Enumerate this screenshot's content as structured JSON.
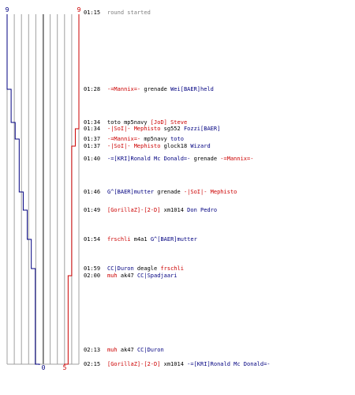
{
  "chart_data": {
    "type": "line",
    "title": "",
    "xlabel": "",
    "ylabel": "",
    "colors": {
      "blue": "#000080",
      "red": "#cc0000",
      "grid": "#a0a0a0",
      "center_line": "#404040"
    },
    "tick_labels": {
      "blue_start": "9",
      "red_start": "9",
      "blue_end": "0",
      "red_end": "5"
    },
    "series": [
      {
        "color": "#000080",
        "alive": [
          9,
          8,
          7,
          7,
          6,
          6,
          6,
          5,
          4,
          3,
          2,
          2,
          2,
          1,
          0
        ]
      },
      {
        "color": "#cc0000",
        "alive": [
          9,
          9,
          9,
          8,
          8,
          7,
          7,
          7,
          7,
          7,
          7,
          6,
          6,
          5,
          5
        ]
      }
    ],
    "events": [
      {
        "time": "01:15",
        "parts": [
          {
            "t": "round started",
            "c": "gry"
          }
        ]
      },
      {
        "time": "01:28",
        "parts": [
          {
            "t": "-=Mannix=-",
            "c": "red"
          },
          {
            "t": " grenade ",
            "c": "blk"
          },
          {
            "t": "Wei[BAER]held",
            "c": "blue"
          }
        ]
      },
      {
        "time": "01:34",
        "parts": [
          {
            "t": "toto",
            "c": "blk"
          },
          {
            "t": " mp5navy ",
            "c": "blk"
          },
          {
            "t": "[JoD] Steve",
            "c": "red"
          }
        ]
      },
      {
        "time": "01:34",
        "parts": [
          {
            "t": "-|SoI|- Mephisto",
            "c": "red"
          },
          {
            "t": " sg552 ",
            "c": "blk"
          },
          {
            "t": "Fozzi[BAER]",
            "c": "blue"
          }
        ]
      },
      {
        "time": "01:37",
        "parts": [
          {
            "t": "-=Mannix=-",
            "c": "red"
          },
          {
            "t": " mp5navy ",
            "c": "blk"
          },
          {
            "t": "toto",
            "c": "blue"
          }
        ]
      },
      {
        "time": "01:37",
        "parts": [
          {
            "t": "-|SoI|- Mephisto",
            "c": "red"
          },
          {
            "t": " glock18 ",
            "c": "blk"
          },
          {
            "t": "Wizard",
            "c": "blue"
          }
        ]
      },
      {
        "time": "01:40",
        "parts": [
          {
            "t": "-=[KRI]Ronald Mc Donald=-",
            "c": "blue"
          },
          {
            "t": " grenade ",
            "c": "blk"
          },
          {
            "t": "-=Mannix=-",
            "c": "red"
          }
        ]
      },
      {
        "time": "01:46",
        "parts": [
          {
            "t": "G^[BAER]mutter",
            "c": "blue"
          },
          {
            "t": " grenade ",
            "c": "blk"
          },
          {
            "t": "-|SoI|- Mephisto",
            "c": "red"
          }
        ]
      },
      {
        "time": "01:49",
        "parts": [
          {
            "t": "[GorillaZ]-[2-D]",
            "c": "red"
          },
          {
            "t": " xm1014 ",
            "c": "blk"
          },
          {
            "t": "Don Pedro",
            "c": "blue"
          }
        ]
      },
      {
        "time": "01:54",
        "parts": [
          {
            "t": "frschli",
            "c": "red"
          },
          {
            "t": " m4a1 ",
            "c": "blk"
          },
          {
            "t": "G^[BAER]mutter",
            "c": "blue"
          }
        ]
      },
      {
        "time": "01:59",
        "parts": [
          {
            "t": "CC|Duron",
            "c": "blue"
          },
          {
            "t": " deagle ",
            "c": "blk"
          },
          {
            "t": "frschli",
            "c": "red"
          }
        ]
      },
      {
        "time": "02:00",
        "parts": [
          {
            "t": "muh",
            "c": "red"
          },
          {
            "t": " ak47 ",
            "c": "blk"
          },
          {
            "t": "CC|Spadjaari",
            "c": "blue"
          }
        ]
      },
      {
        "time": "02:13",
        "parts": [
          {
            "t": "muh",
            "c": "red"
          },
          {
            "t": " ak47 ",
            "c": "blk"
          },
          {
            "t": "CC|Duron",
            "c": "blue"
          }
        ]
      },
      {
        "time": "02:15",
        "parts": [
          {
            "t": "[GorillaZ]-[2-D]",
            "c": "red"
          },
          {
            "t": " xm1014 ",
            "c": "blk"
          },
          {
            "t": "-=[KRI]Ronald Mc Donald=-",
            "c": "blue"
          }
        ]
      }
    ]
  }
}
